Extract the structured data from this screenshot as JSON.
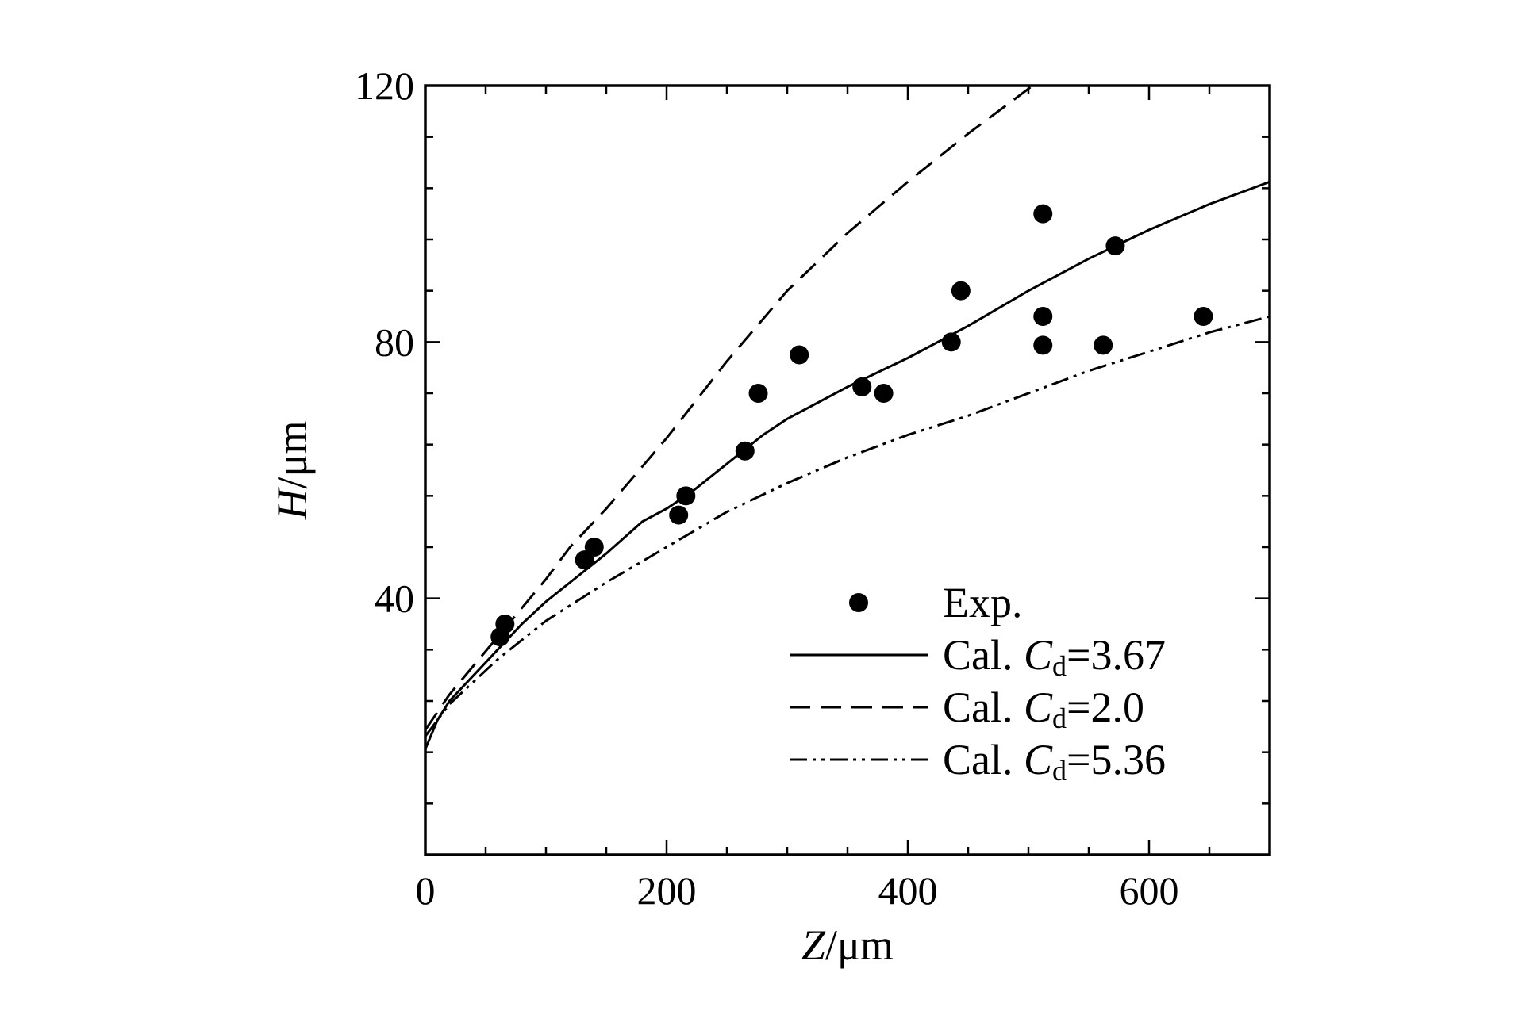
{
  "chart_data": {
    "type": "scatter",
    "xlabel": {
      "var": "Z",
      "unit": "/μm"
    },
    "ylabel": {
      "var": "H",
      "unit": "/μm"
    },
    "xlim": [
      0,
      700
    ],
    "ylim": [
      0,
      120
    ],
    "x_ticks": [
      0,
      200,
      400,
      600
    ],
    "y_ticks": [
      40,
      80,
      120
    ],
    "grid": false,
    "legend_position": "bottom-right",
    "series": [
      {
        "name": "Exp.",
        "kind": "markers",
        "points": [
          [
            62,
            34
          ],
          [
            66,
            36
          ],
          [
            132,
            46
          ],
          [
            140,
            48
          ],
          [
            210,
            53
          ],
          [
            216,
            56
          ],
          [
            265,
            63
          ],
          [
            276,
            72
          ],
          [
            310,
            78
          ],
          [
            362,
            73
          ],
          [
            380,
            72
          ],
          [
            436,
            80
          ],
          [
            444,
            88
          ],
          [
            512,
            100
          ],
          [
            512,
            84
          ],
          [
            512,
            79.5
          ],
          [
            562,
            79.5
          ],
          [
            572,
            95
          ],
          [
            645,
            84
          ]
        ]
      },
      {
        "name_prefix": "Cal. ",
        "name_var": "C",
        "name_sub": "d",
        "name_suffix": "=3.67",
        "kind": "solid",
        "points": [
          [
            0,
            16.5
          ],
          [
            10,
            21
          ],
          [
            20,
            24
          ],
          [
            40,
            28
          ],
          [
            60,
            32
          ],
          [
            80,
            36
          ],
          [
            100,
            39.5
          ],
          [
            120,
            42.5
          ],
          [
            150,
            47
          ],
          [
            180,
            52
          ],
          [
            200,
            54
          ],
          [
            220,
            56.5
          ],
          [
            250,
            61
          ],
          [
            280,
            65.5
          ],
          [
            300,
            68
          ],
          [
            350,
            73
          ],
          [
            400,
            77.5
          ],
          [
            450,
            82.5
          ],
          [
            500,
            88
          ],
          [
            550,
            93
          ],
          [
            600,
            97.5
          ],
          [
            650,
            101.5
          ],
          [
            700,
            105
          ]
        ]
      },
      {
        "name_prefix": "Cal. ",
        "name_var": "C",
        "name_sub": "d",
        "name_suffix": "=2.0",
        "kind": "dashed",
        "points": [
          [
            0,
            19.5
          ],
          [
            20,
            25
          ],
          [
            40,
            29.5
          ],
          [
            60,
            34
          ],
          [
            80,
            38.5
          ],
          [
            100,
            43
          ],
          [
            120,
            48
          ],
          [
            150,
            54
          ],
          [
            200,
            65
          ],
          [
            250,
            77
          ],
          [
            300,
            88
          ],
          [
            350,
            97
          ],
          [
            400,
            105
          ],
          [
            450,
            112.5
          ],
          [
            500,
            119.5
          ],
          [
            510,
            121
          ]
        ]
      },
      {
        "name_prefix": "Cal. ",
        "name_var": "C",
        "name_sub": "d",
        "name_suffix": "=5.36",
        "kind": "dashdotdot",
        "points": [
          [
            0,
            18.5
          ],
          [
            20,
            23.5
          ],
          [
            40,
            27
          ],
          [
            60,
            30.5
          ],
          [
            80,
            33.5
          ],
          [
            100,
            36.5
          ],
          [
            150,
            42.5
          ],
          [
            200,
            48
          ],
          [
            250,
            53.5
          ],
          [
            300,
            58
          ],
          [
            350,
            62
          ],
          [
            400,
            65.5
          ],
          [
            450,
            68.5
          ],
          [
            500,
            72
          ],
          [
            550,
            75.5
          ],
          [
            600,
            78.5
          ],
          [
            650,
            81.5
          ],
          [
            700,
            84
          ]
        ]
      }
    ]
  }
}
